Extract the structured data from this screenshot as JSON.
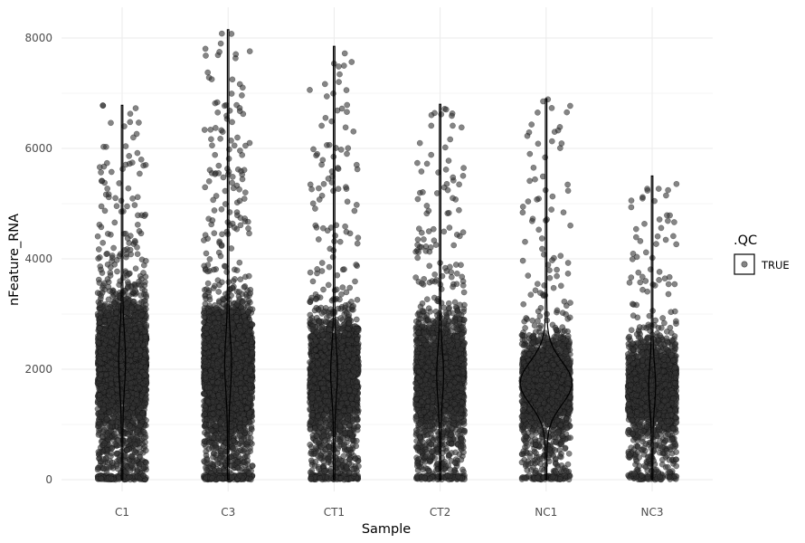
{
  "chart_data": {
    "type": "scatter",
    "subtype": "jittered strip plot with violin outline",
    "title": "",
    "xlabel": "Sample",
    "ylabel": "nFeature_RNA",
    "categories": [
      "C1",
      "C3",
      "CT1",
      "CT2",
      "NC1",
      "NC3"
    ],
    "ylim": [
      0,
      8000
    ],
    "yticks": [
      0,
      2000,
      4000,
      6000,
      8000
    ],
    "grid": true,
    "legend": {
      "title": ".QC",
      "position": "right",
      "entries": [
        "TRUE"
      ]
    },
    "series": [
      {
        "category": "C1",
        "min": 0,
        "max": 6780,
        "median": 2150,
        "n_points": 3200
      },
      {
        "category": "C3",
        "min": 0,
        "max": 8150,
        "median": 2100,
        "n_points": 3600
      },
      {
        "category": "CT1",
        "min": 0,
        "max": 7850,
        "median": 1950,
        "n_points": 2600
      },
      {
        "category": "CT2",
        "min": 0,
        "max": 6800,
        "median": 1900,
        "n_points": 2300
      },
      {
        "category": "NC1",
        "min": 0,
        "max": 6900,
        "median": 1750,
        "n_points": 1900
      },
      {
        "category": "NC3",
        "min": 0,
        "max": 5500,
        "median": 1700,
        "n_points": 1800
      }
    ],
    "point_color": "#333333",
    "point_alpha": 0.6,
    "line_color": "#000000"
  }
}
